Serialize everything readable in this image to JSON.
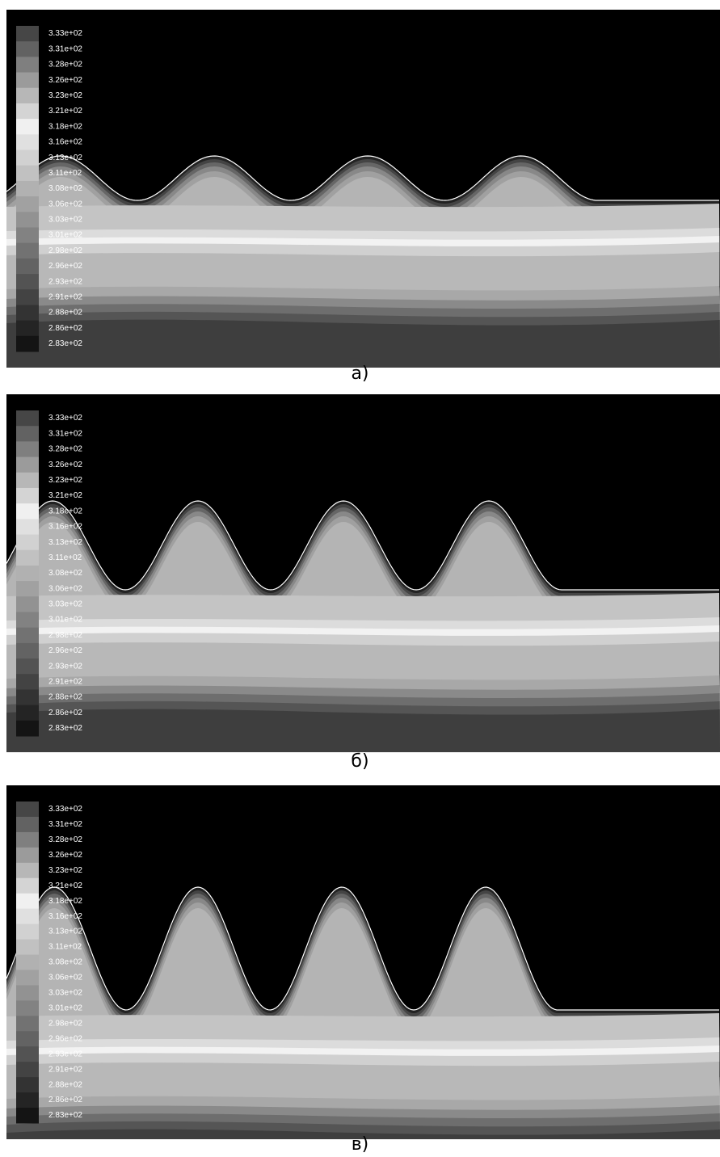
{
  "panels": [
    {
      "caption": "а)",
      "legend": [
        "3.33e+02",
        "3.31e+02",
        "3.28e+02",
        "3.26e+02",
        "3.23e+02",
        "3.21e+02",
        "3.18e+02",
        "3.16e+02",
        "3.13e+02",
        "3.11e+02",
        "3.08e+02",
        "3.06e+02",
        "3.03e+02",
        "3.01e+02",
        "2.98e+02",
        "2.96e+02",
        "2.93e+02",
        "2.91e+02",
        "2.88e+02",
        "2.86e+02",
        "2.83e+02"
      ]
    },
    {
      "caption": "б)",
      "legend": [
        "3.33e+02",
        "3.31e+02",
        "3.28e+02",
        "3.26e+02",
        "3.23e+02",
        "3.21e+02",
        "3.18e+02",
        "3.16e+02",
        "3.13e+02",
        "3.11e+02",
        "3.08e+02",
        "3.06e+02",
        "3.03e+02",
        "3.01e+02",
        "2.98e+02",
        "2.96e+02",
        "2.93e+02",
        "2.91e+02",
        "2.88e+02",
        "2.86e+02",
        "2.83e+02"
      ]
    },
    {
      "caption": "в)",
      "legend": [
        "3.33e+02",
        "3.31e+02",
        "3.28e+02",
        "3.26e+02",
        "3.23e+02",
        "3.21e+02",
        "3.18e+02",
        "3.16e+02",
        "3.13e+02",
        "3.11e+02",
        "3.08e+02",
        "3.06e+02",
        "3.03e+02",
        "3.01e+02",
        "2.98e+02",
        "2.96e+02",
        "2.93e+02",
        "2.91e+02",
        "2.88e+02",
        "2.86e+02",
        "2.83e+02"
      ]
    }
  ]
}
